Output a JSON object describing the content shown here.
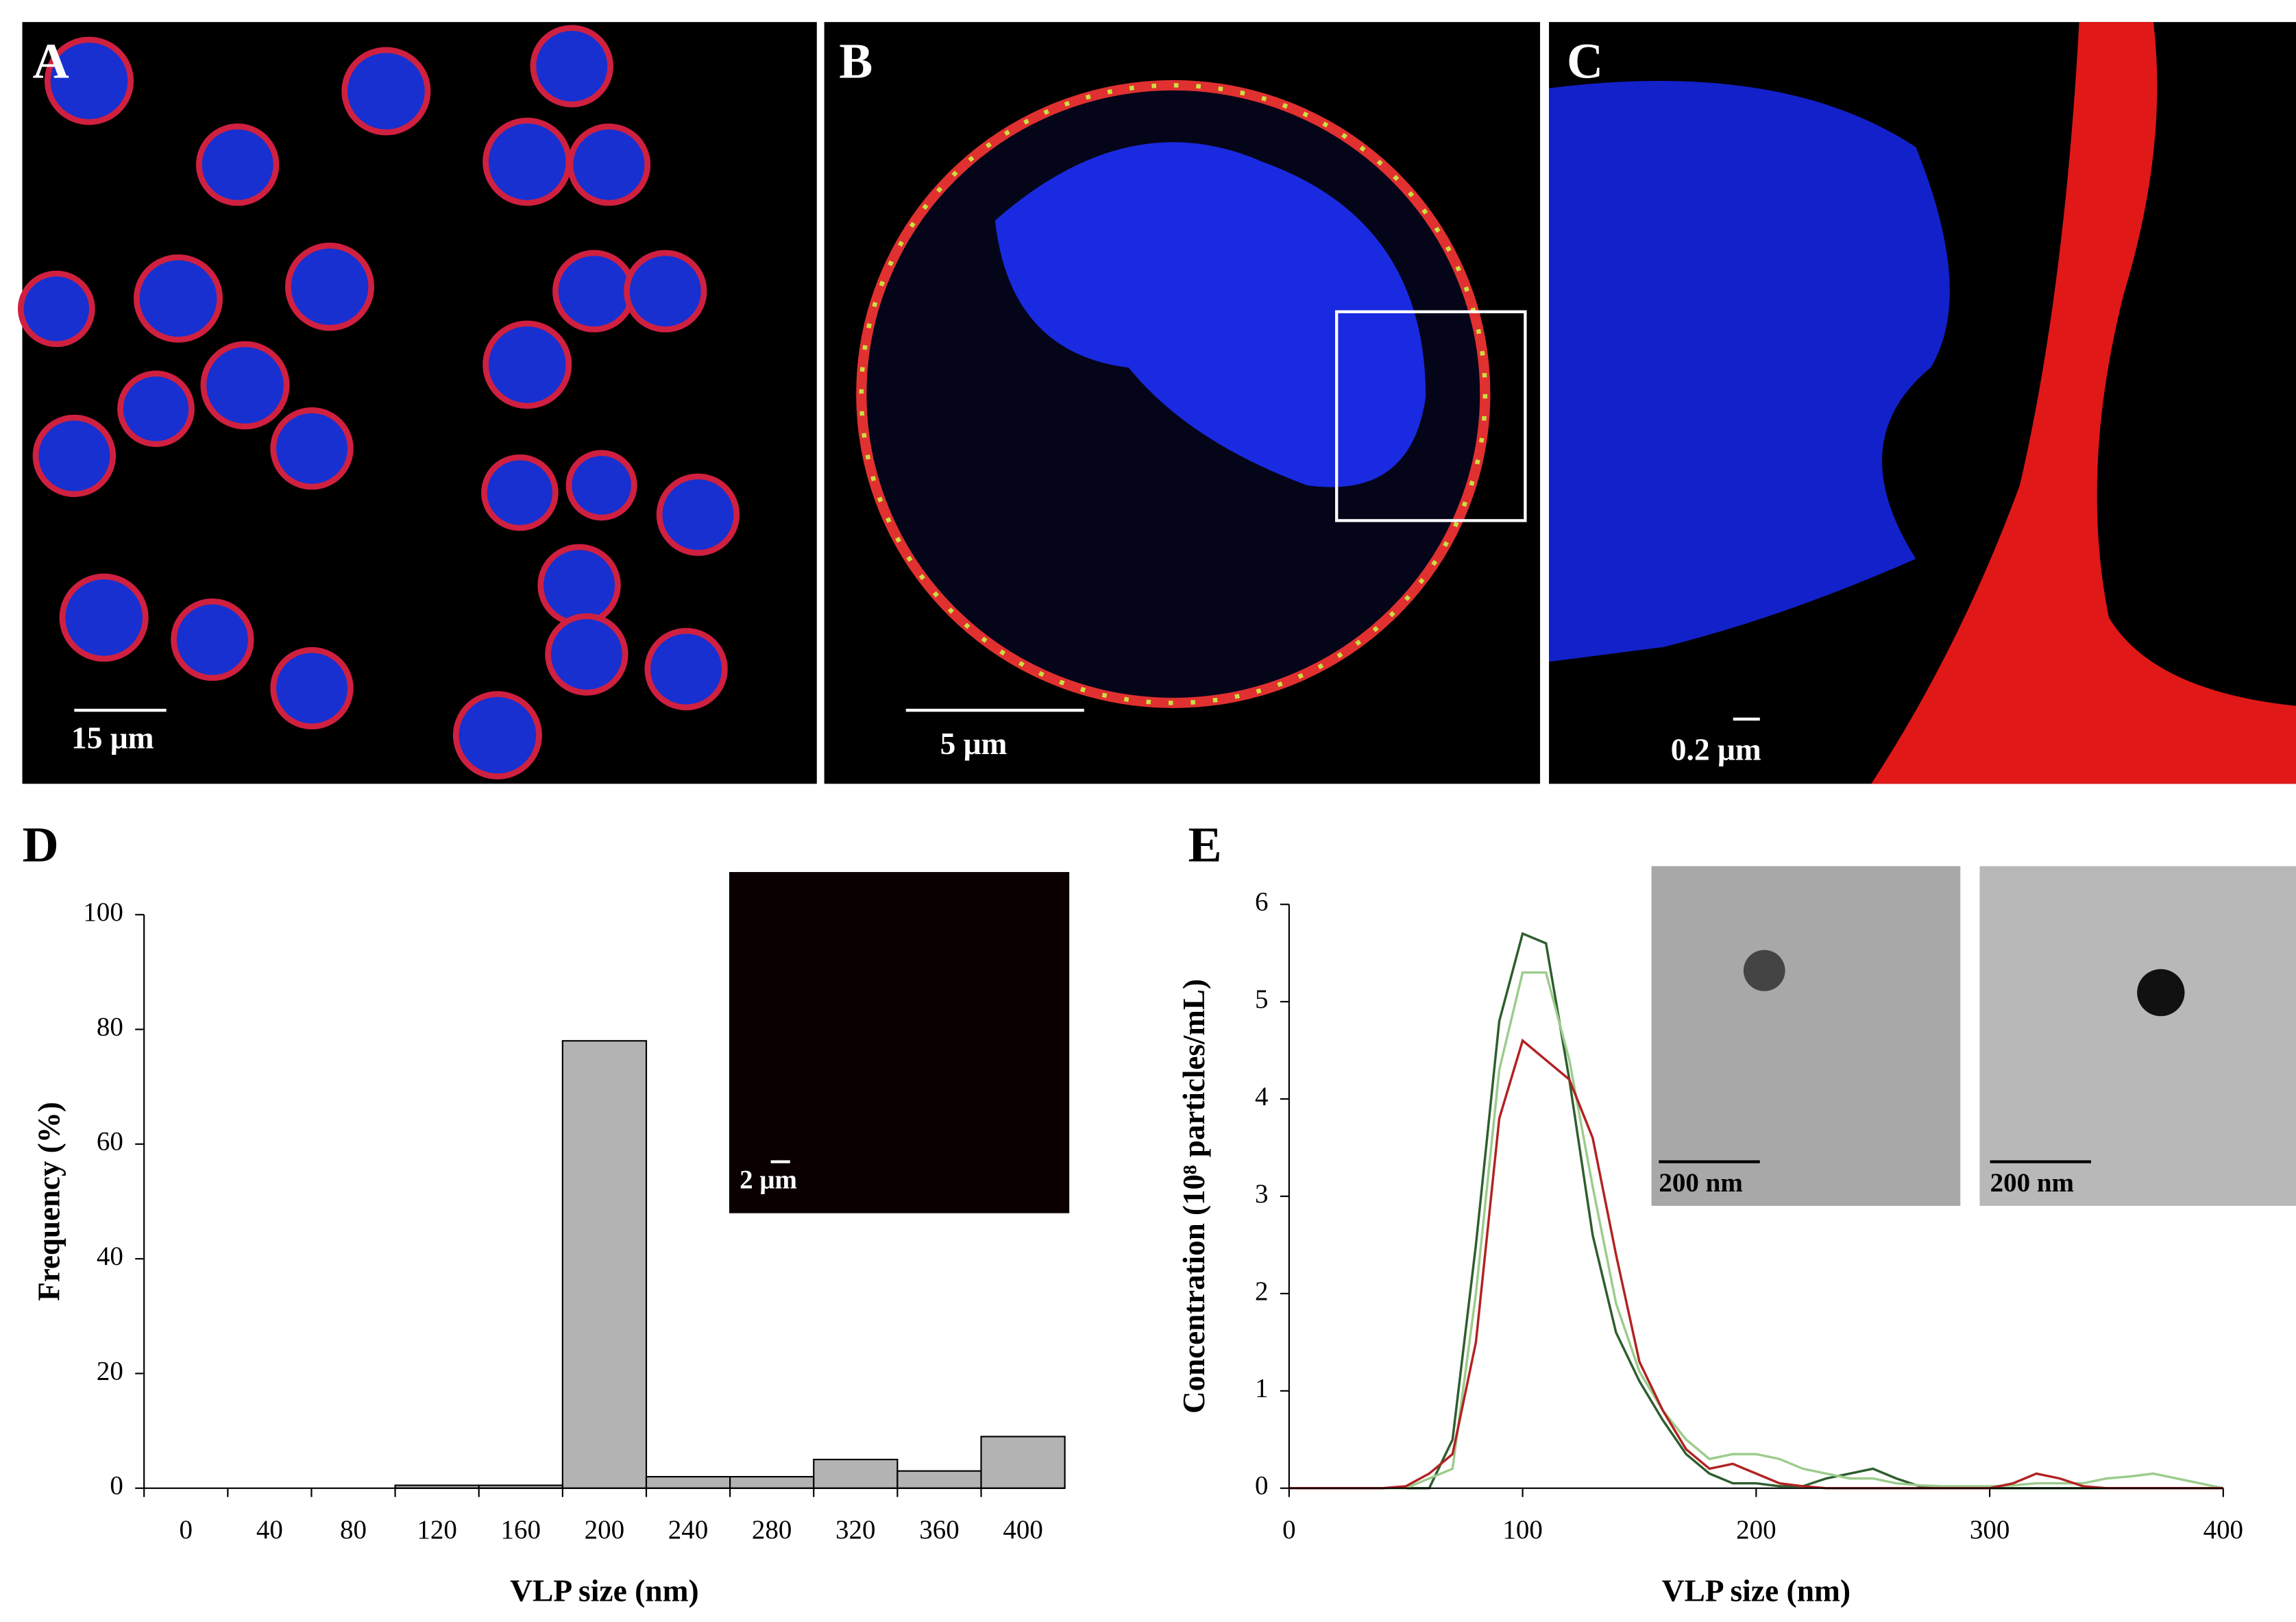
{
  "panels": [
    {
      "label": "A",
      "scale": "15 μm"
    },
    {
      "label": "B",
      "scale": "5 μm"
    },
    {
      "label": "C",
      "scale": "0.2 μm"
    },
    {
      "label": "D",
      "scale": "2 μm"
    },
    {
      "label": "E",
      "scale": "200 nm",
      "scale2": "200 nm"
    }
  ],
  "chart_data": [
    {
      "type": "bar",
      "xlabel": "VLP size (nm)",
      "ylabel": "Frequency (%)",
      "categories": [
        "0",
        "40",
        "80",
        "120",
        "160",
        "200",
        "240",
        "280",
        "320",
        "360",
        "400"
      ],
      "values": [
        0,
        0,
        0,
        0.5,
        0.5,
        78,
        2,
        2,
        5,
        3,
        9
      ],
      "color": "#b3b3b3",
      "ylim": [
        0,
        100
      ],
      "yticks": [
        0,
        20,
        40,
        60,
        80,
        100
      ]
    },
    {
      "type": "line",
      "xlabel": "VLP size (nm)",
      "ylabel": "Concentration (10⁸ particles/mL)",
      "x": [
        0,
        10,
        20,
        30,
        40,
        50,
        60,
        70,
        80,
        90,
        100,
        110,
        120,
        130,
        140,
        150,
        160,
        170,
        180,
        190,
        200,
        210,
        220,
        230,
        240,
        250,
        260,
        270,
        280,
        290,
        300,
        310,
        320,
        330,
        340,
        350,
        360,
        370,
        380,
        390,
        400
      ],
      "series": [
        {
          "color": "#2e5e2e",
          "values": [
            0,
            0,
            0,
            0,
            0,
            0,
            0,
            0.5,
            2.5,
            4.8,
            5.7,
            5.6,
            4.2,
            2.6,
            1.6,
            1.1,
            0.7,
            0.35,
            0.15,
            0.05,
            0.05,
            0.02,
            0.02,
            0.1,
            0.15,
            0.2,
            0.1,
            0.02,
            0,
            0,
            0,
            0,
            0,
            0,
            0,
            0,
            0,
            0,
            0,
            0,
            0
          ]
        },
        {
          "color": "#9ccc8c",
          "values": [
            0,
            0,
            0,
            0,
            0,
            0,
            0.1,
            0.2,
            2.0,
            4.3,
            5.3,
            5.3,
            4.4,
            3.1,
            1.9,
            1.2,
            0.8,
            0.5,
            0.3,
            0.35,
            0.35,
            0.3,
            0.2,
            0.15,
            0.1,
            0.1,
            0.05,
            0.03,
            0.02,
            0.02,
            0.02,
            0.03,
            0.05,
            0.05,
            0.05,
            0.1,
            0.12,
            0.15,
            0.1,
            0.05,
            0
          ]
        },
        {
          "color": "#b22222",
          "values": [
            0,
            0,
            0,
            0,
            0,
            0.02,
            0.15,
            0.35,
            1.5,
            3.8,
            4.6,
            4.4,
            4.2,
            3.6,
            2.4,
            1.3,
            0.8,
            0.4,
            0.2,
            0.25,
            0.15,
            0.05,
            0.02,
            0,
            0,
            0,
            0,
            0,
            0,
            0,
            0,
            0.05,
            0.15,
            0.1,
            0.02,
            0,
            0,
            0,
            0,
            0,
            0
          ]
        }
      ],
      "xlim": [
        0,
        400
      ],
      "xticks": [
        0,
        100,
        200,
        300,
        400
      ],
      "ylim": [
        0,
        6
      ],
      "yticks": [
        0,
        1,
        2,
        3,
        4,
        5,
        6
      ]
    }
  ]
}
